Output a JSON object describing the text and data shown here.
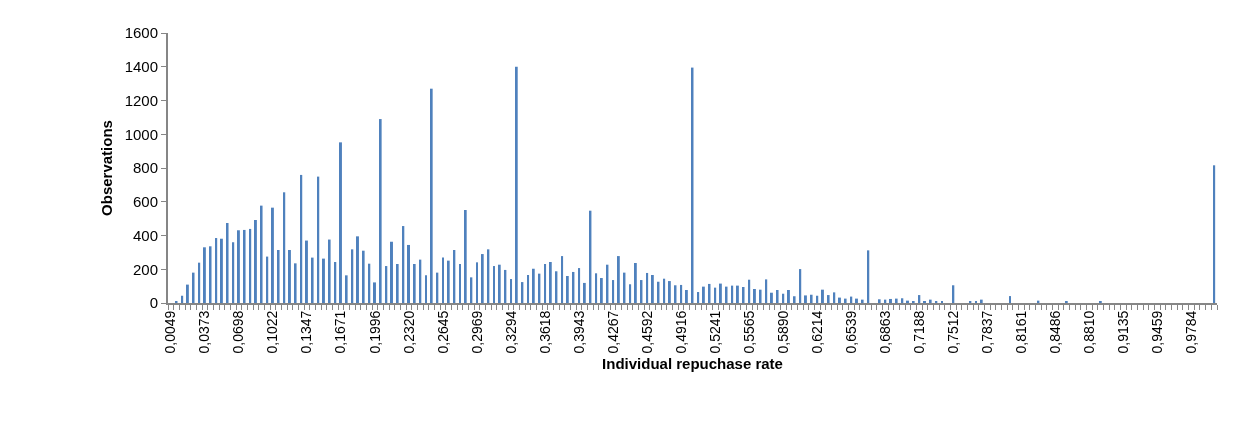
{
  "chart_data": {
    "type": "bar",
    "xlabel": "Individual repuchase rate",
    "ylabel": "Observations",
    "categories": [
      "0,0049",
      null,
      null,
      null,
      null,
      null,
      "0,0373",
      null,
      null,
      null,
      null,
      null,
      "0,0698",
      null,
      null,
      null,
      null,
      null,
      "0,1022",
      null,
      null,
      null,
      null,
      null,
      "0,1347",
      null,
      null,
      null,
      null,
      null,
      "0,1671",
      null,
      null,
      null,
      null,
      null,
      "0,1996",
      null,
      null,
      null,
      null,
      null,
      "0,2320",
      null,
      null,
      null,
      null,
      null,
      "0,2645",
      null,
      null,
      null,
      null,
      null,
      "0,2969",
      null,
      null,
      null,
      null,
      null,
      "0,3294",
      null,
      null,
      null,
      null,
      null,
      "0,3618",
      null,
      null,
      null,
      null,
      null,
      "0,3943",
      null,
      null,
      null,
      null,
      null,
      "0,4267",
      null,
      null,
      null,
      null,
      null,
      "0,4592",
      null,
      null,
      null,
      null,
      null,
      "0,4916",
      null,
      null,
      null,
      null,
      null,
      "0,5241",
      null,
      null,
      null,
      null,
      null,
      "0,5565",
      null,
      null,
      null,
      null,
      null,
      "0,5890",
      null,
      null,
      null,
      null,
      null,
      "0,6214",
      null,
      null,
      null,
      null,
      null,
      "0,6539",
      null,
      null,
      null,
      null,
      null,
      "0,6863",
      null,
      null,
      null,
      null,
      null,
      "0,7188",
      null,
      null,
      null,
      null,
      null,
      "0,7512",
      null,
      null,
      null,
      null,
      null,
      "0,7837",
      null,
      null,
      null,
      null,
      null,
      "0,8161",
      null,
      null,
      null,
      null,
      null,
      "0,8486",
      null,
      null,
      null,
      null,
      null,
      "0,8810",
      null,
      null,
      null,
      null,
      null,
      "0,9135",
      null,
      null,
      null,
      null,
      null,
      "0,9459",
      null,
      null,
      null,
      null,
      null,
      "0,9784",
      null,
      null,
      null,
      null
    ],
    "values": [
      0,
      10,
      43,
      109,
      180,
      239,
      330,
      336,
      385,
      381,
      474,
      360,
      431,
      433,
      439,
      492,
      577,
      275,
      565,
      314,
      656,
      314,
      235,
      759,
      370,
      269,
      749,
      263,
      376,
      243,
      952,
      164,
      318,
      395,
      310,
      233,
      122,
      1090,
      219,
      363,
      231,
      456,
      344,
      231,
      257,
      164,
      1270,
      180,
      269,
      251,
      314,
      231,
      551,
      152,
      241,
      290,
      318,
      219,
      227,
      196,
      142,
      1400,
      124,
      166,
      203,
      174,
      231,
      243,
      188,
      278,
      160,
      184,
      207,
      119,
      547,
      176,
      148,
      227,
      136,
      278,
      180,
      111,
      237,
      136,
      178,
      166,
      126,
      144,
      130,
      105,
      107,
      77,
      1395,
      65,
      97,
      113,
      91,
      115,
      97,
      103,
      103,
      95,
      138,
      83,
      79,
      140,
      61,
      77,
      55,
      77,
      40,
      201,
      45,
      49,
      43,
      79,
      47,
      63,
      32,
      26,
      38,
      26,
      20,
      312,
      0,
      22,
      20,
      24,
      26,
      28,
      14,
      10,
      47,
      10,
      20,
      8,
      8,
      0,
      105,
      0,
      0,
      6,
      10,
      20,
      0,
      0,
      0,
      0,
      41,
      0,
      0,
      0,
      0,
      14,
      0,
      0,
      0,
      0,
      8,
      0,
      0,
      0,
      0,
      0,
      8,
      0,
      0,
      0,
      0,
      0,
      0,
      0,
      0,
      0,
      0,
      0,
      0,
      0,
      0,
      0,
      0,
      0,
      0,
      0,
      816
    ],
    "color": "#4f81bd",
    "ylim": [
      0,
      1600
    ],
    "yticks": [
      0,
      200,
      400,
      600,
      800,
      1000,
      1200,
      1400,
      1600
    ],
    "legend": false
  }
}
